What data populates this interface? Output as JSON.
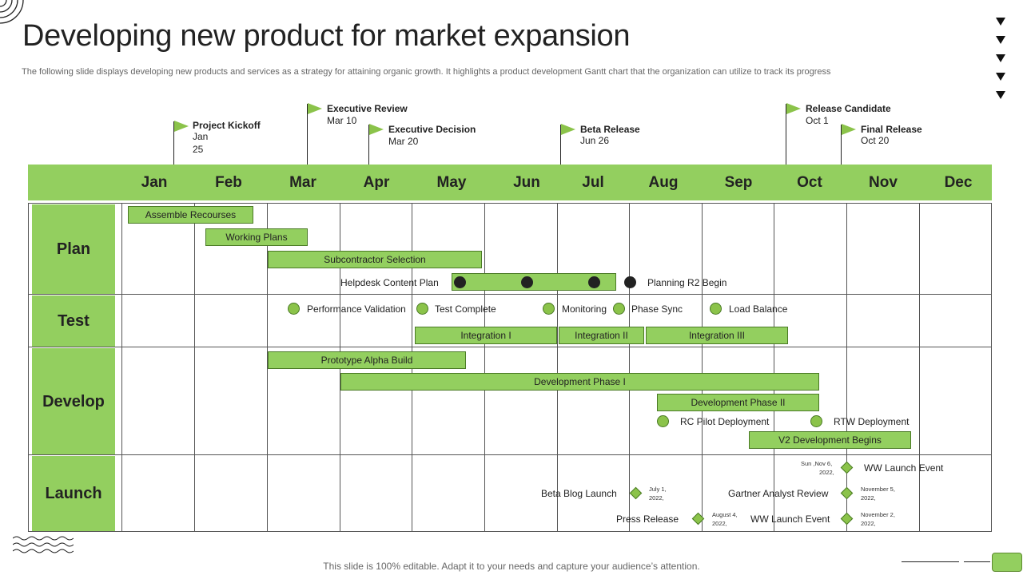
{
  "page": {
    "title": "Developing new product for market expansion",
    "subtitle": "The following slide displays developing new products and services as a strategy for  attaining organic growth. It highlights a product development Gantt chart that the organization can utilize to track its progress",
    "footer": "This slide is 100% editable. Adapt it to your needs and capture your audience’s attention."
  },
  "colors": {
    "accent": "#93cf5f",
    "accent_dark": "#4a7a25",
    "dot_dark": "#222222"
  },
  "milestones": [
    {
      "title": "Project Kickoff",
      "date_line1": "Jan",
      "date_line2": "25"
    },
    {
      "title": "Executive Review",
      "date_line1": "Mar 10",
      "date_line2": ""
    },
    {
      "title": "Executive Decision",
      "date_line1": "Mar 20",
      "date_line2": ""
    },
    {
      "title": "Beta Release",
      "date_line1": "Jun 26",
      "date_line2": ""
    },
    {
      "title": "Release Candidate",
      "date_line1": "Oct 1",
      "date_line2": ""
    },
    {
      "title": "Final Release",
      "date_line1": "Oct 20",
      "date_line2": ""
    }
  ],
  "months": [
    "Jan",
    "Feb",
    "Mar",
    "Apr",
    "May",
    "Jun",
    "Jul",
    "Aug",
    "Sep",
    "Oct",
    "Nov",
    "Dec"
  ],
  "phases": [
    "Plan",
    "Test",
    "Develop",
    "Launch"
  ],
  "bars": {
    "assemble": "Assemble Recourses",
    "working": "Working Plans",
    "subcontractor": "Subcontractor Selection",
    "integration1": "Integration I",
    "integration2": "Integration II",
    "integration3": "Integration III",
    "prototype": "Prototype   Alpha Build",
    "dev1": "Development Phase I",
    "dev2": "Development Phase II",
    "v2": "V2 Development Begins"
  },
  "labels": {
    "helpdesk": "Helpdesk Content Plan",
    "planning_r2": "Planning R2 Begin",
    "perf_validation": "Performance Validation",
    "test_complete": "Test Complete",
    "monitoring": "Monitoring",
    "phase_sync": "Phase Sync",
    "load_balance": "Load Balance",
    "rc_pilot": "RC Pilot Deployment",
    "rtw": "RTW Deployment",
    "ww_launch_1": "WW Launch Event",
    "beta_blog": "Beta Blog Launch",
    "gartner": "Gartner Analyst Review",
    "press": "Press Release",
    "ww_launch_2": "WW Launch Event"
  },
  "dates": {
    "ww1_l1": "Sun ,Nov 6,",
    "ww1_l2": "2022,",
    "blog_l1": "July 1,",
    "blog_l2": "2022,",
    "gartner_l1": "November 5,",
    "gartner_l2": "2022,",
    "press_l1": "August 4,",
    "press_l2": "2022,",
    "ww2_l1": "November 2,",
    "ww2_l2": "2022,"
  }
}
